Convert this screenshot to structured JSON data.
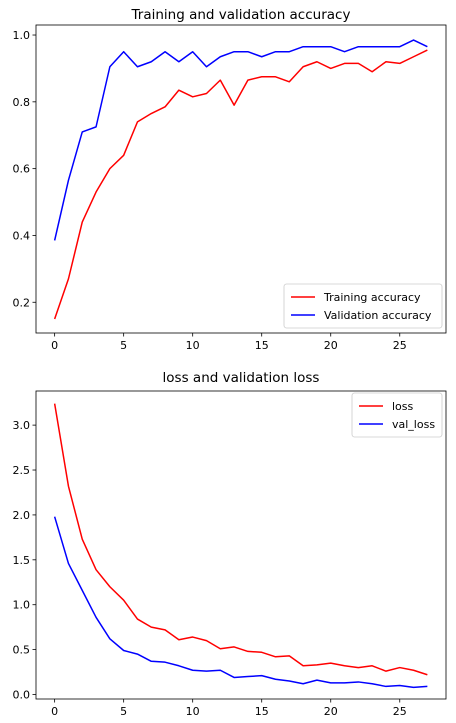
{
  "chart_data": [
    {
      "type": "line",
      "title": "Training and validation accuracy",
      "xlabel": "",
      "ylabel": "",
      "xlim": [
        -1.35,
        28.35
      ],
      "ylim": [
        0.108,
        1.03
      ],
      "xticks": [
        0,
        5,
        10,
        15,
        20,
        25
      ],
      "yticks": [
        0.2,
        0.4,
        0.6,
        0.8,
        1.0
      ],
      "xtick_labels": [
        "0",
        "5",
        "10",
        "15",
        "20",
        "25"
      ],
      "ytick_labels": [
        "0.2",
        "0.4",
        "0.6",
        "0.8",
        "1.0"
      ],
      "legend_position": "lower-right",
      "grid": false,
      "x": [
        0,
        1,
        2,
        3,
        4,
        5,
        6,
        7,
        8,
        9,
        10,
        11,
        12,
        13,
        14,
        15,
        16,
        17,
        18,
        19,
        20,
        21,
        22,
        23,
        24,
        25,
        26,
        27
      ],
      "series": [
        {
          "name": "Training accuracy",
          "color": "#ff0000",
          "values": [
            0.15,
            0.27,
            0.44,
            0.53,
            0.6,
            0.64,
            0.74,
            0.765,
            0.785,
            0.835,
            0.815,
            0.825,
            0.865,
            0.79,
            0.865,
            0.875,
            0.875,
            0.86,
            0.905,
            0.92,
            0.9,
            0.915,
            0.915,
            0.89,
            0.92,
            0.915,
            0.935,
            0.955
          ]
        },
        {
          "name": "Validation accuracy",
          "color": "#0000ff",
          "values": [
            0.385,
            0.565,
            0.71,
            0.725,
            0.905,
            0.95,
            0.905,
            0.92,
            0.95,
            0.92,
            0.95,
            0.905,
            0.935,
            0.95,
            0.95,
            0.935,
            0.95,
            0.95,
            0.965,
            0.965,
            0.965,
            0.95,
            0.965,
            0.965,
            0.965,
            0.965,
            0.985,
            0.965
          ]
        }
      ]
    },
    {
      "type": "line",
      "title": "loss and validation loss",
      "xlabel": "",
      "ylabel": "",
      "xlim": [
        -1.35,
        28.35
      ],
      "ylim": [
        -0.05,
        3.38
      ],
      "xticks": [
        0,
        5,
        10,
        15,
        20,
        25
      ],
      "yticks": [
        0.0,
        0.5,
        1.0,
        1.5,
        2.0,
        2.5,
        3.0
      ],
      "xtick_labels": [
        "0",
        "5",
        "10",
        "15",
        "20",
        "25"
      ],
      "ytick_labels": [
        "0.0",
        "0.5",
        "1.0",
        "1.5",
        "2.0",
        "2.5",
        "3.0"
      ],
      "legend_position": "upper-right",
      "grid": false,
      "x": [
        0,
        1,
        2,
        3,
        4,
        5,
        6,
        7,
        8,
        9,
        10,
        11,
        12,
        13,
        14,
        15,
        16,
        17,
        18,
        19,
        20,
        21,
        22,
        23,
        24,
        25,
        26,
        27
      ],
      "series": [
        {
          "name": "loss",
          "color": "#ff0000",
          "values": [
            3.24,
            2.32,
            1.73,
            1.39,
            1.2,
            1.05,
            0.84,
            0.75,
            0.72,
            0.61,
            0.64,
            0.6,
            0.51,
            0.53,
            0.48,
            0.47,
            0.42,
            0.43,
            0.32,
            0.33,
            0.35,
            0.32,
            0.3,
            0.32,
            0.26,
            0.3,
            0.27,
            0.22
          ]
        },
        {
          "name": "val_loss",
          "color": "#0000ff",
          "values": [
            1.98,
            1.46,
            1.16,
            0.86,
            0.62,
            0.49,
            0.45,
            0.37,
            0.36,
            0.32,
            0.27,
            0.26,
            0.27,
            0.19,
            0.2,
            0.21,
            0.17,
            0.15,
            0.12,
            0.16,
            0.13,
            0.13,
            0.14,
            0.12,
            0.09,
            0.1,
            0.08,
            0.09
          ]
        }
      ]
    }
  ]
}
